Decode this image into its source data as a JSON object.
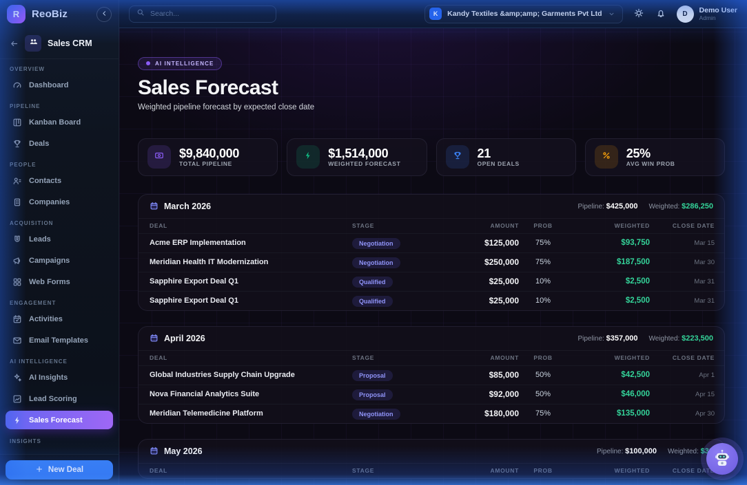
{
  "brand": {
    "logo_letter": "R",
    "name": "ReoBiz"
  },
  "topbar": {
    "search_placeholder": "Search...",
    "company": {
      "initial": "K",
      "name": "Kandy Textiles &amp;amp; Garments Pvt Ltd"
    },
    "user": {
      "initial": "D",
      "name": "Demo User",
      "role": "Admin"
    }
  },
  "sidebar": {
    "module_title": "Sales CRM",
    "sections": [
      {
        "label": "OVERVIEW",
        "items": [
          {
            "label": "Dashboard",
            "icon": "gauge-icon",
            "active": false
          }
        ]
      },
      {
        "label": "PIPELINE",
        "items": [
          {
            "label": "Kanban Board",
            "icon": "kanban-icon",
            "active": false
          },
          {
            "label": "Deals",
            "icon": "trophy-icon",
            "active": false
          }
        ]
      },
      {
        "label": "PEOPLE",
        "items": [
          {
            "label": "Contacts",
            "icon": "contacts-icon",
            "active": false
          },
          {
            "label": "Companies",
            "icon": "building-icon",
            "active": false
          }
        ]
      },
      {
        "label": "ACQUISITION",
        "items": [
          {
            "label": "Leads",
            "icon": "magnet-icon",
            "active": false
          },
          {
            "label": "Campaigns",
            "icon": "megaphone-icon",
            "active": false
          },
          {
            "label": "Web Forms",
            "icon": "grid-icon",
            "active": false
          }
        ]
      },
      {
        "label": "ENGAGEMENT",
        "items": [
          {
            "label": "Activities",
            "icon": "calendar-check-icon",
            "active": false
          },
          {
            "label": "Email Templates",
            "icon": "mail-icon",
            "active": false
          }
        ]
      },
      {
        "label": "AI INTELLIGENCE",
        "items": [
          {
            "label": "AI Insights",
            "icon": "sparkles-icon",
            "active": false
          },
          {
            "label": "Lead Scoring",
            "icon": "chart-icon",
            "active": false
          },
          {
            "label": "Sales Forecast",
            "icon": "zap-icon",
            "active": true
          }
        ]
      },
      {
        "label": "INSIGHTS",
        "items": []
      }
    ],
    "new_deal_label": "New Deal"
  },
  "page": {
    "badge": "AI INTELLIGENCE",
    "title": "Sales Forecast",
    "subtitle": "Weighted pipeline forecast by expected close date"
  },
  "kpis": [
    {
      "value": "$9,840,000",
      "label": "TOTAL PIPELINE",
      "icon": "banknote-icon",
      "color": "#8b5cf6",
      "tile_bg": "rgba(139,92,246,0.16)"
    },
    {
      "value": "$1,514,000",
      "label": "WEIGHTED FORECAST",
      "icon": "zap-icon",
      "color": "#10b981",
      "tile_bg": "rgba(16,185,129,0.15)"
    },
    {
      "value": "21",
      "label": "OPEN DEALS",
      "icon": "trophy-icon",
      "color": "#3b82f6",
      "tile_bg": "rgba(59,130,246,0.15)"
    },
    {
      "value": "25%",
      "label": "AVG WIN PROB",
      "icon": "percent-icon",
      "color": "#f59e0b",
      "tile_bg": "rgba(245,158,11,0.15)"
    }
  ],
  "table": {
    "columns": [
      "DEAL",
      "STAGE",
      "AMOUNT",
      "PROB",
      "WEIGHTED",
      "CLOSE DATE"
    ],
    "pipeline_label": "Pipeline:",
    "weighted_label": "Weighted:"
  },
  "months": [
    {
      "name": "March 2026",
      "pipeline": "$425,000",
      "weighted": "$286,250",
      "deals": [
        {
          "deal": "Acme ERP Implementation",
          "stage": "Negotiation",
          "amount": "$125,000",
          "prob": "75%",
          "weighted": "$93,750",
          "close": "Mar 15"
        },
        {
          "deal": "Meridian Health IT Modernization",
          "stage": "Negotiation",
          "amount": "$250,000",
          "prob": "75%",
          "weighted": "$187,500",
          "close": "Mar 30"
        },
        {
          "deal": "Sapphire Export Deal Q1",
          "stage": "Qualified",
          "amount": "$25,000",
          "prob": "10%",
          "weighted": "$2,500",
          "close": "Mar 31"
        },
        {
          "deal": "Sapphire Export Deal Q1",
          "stage": "Qualified",
          "amount": "$25,000",
          "prob": "10%",
          "weighted": "$2,500",
          "close": "Mar 31"
        }
      ]
    },
    {
      "name": "April 2026",
      "pipeline": "$357,000",
      "weighted": "$223,500",
      "deals": [
        {
          "deal": "Global Industries Supply Chain Upgrade",
          "stage": "Proposal",
          "amount": "$85,000",
          "prob": "50%",
          "weighted": "$42,500",
          "close": "Apr 1"
        },
        {
          "deal": "Nova Financial Analytics Suite",
          "stage": "Proposal",
          "amount": "$92,000",
          "prob": "50%",
          "weighted": "$46,000",
          "close": "Apr 15"
        },
        {
          "deal": "Meridian Telemedicine Platform",
          "stage": "Negotiation",
          "amount": "$180,000",
          "prob": "75%",
          "weighted": "$135,000",
          "close": "Apr 30"
        }
      ]
    },
    {
      "name": "May 2026",
      "pipeline": "$100,000",
      "weighted": "$38",
      "deals": []
    }
  ],
  "chatbot": {
    "icon": "robot-icon"
  },
  "colors": {
    "accent_purple": "#8b5cf6",
    "accent_indigo": "#6366f1",
    "accent_blue": "#3b82f6",
    "success_green": "#34d399",
    "warning_amber": "#f59e0b"
  }
}
